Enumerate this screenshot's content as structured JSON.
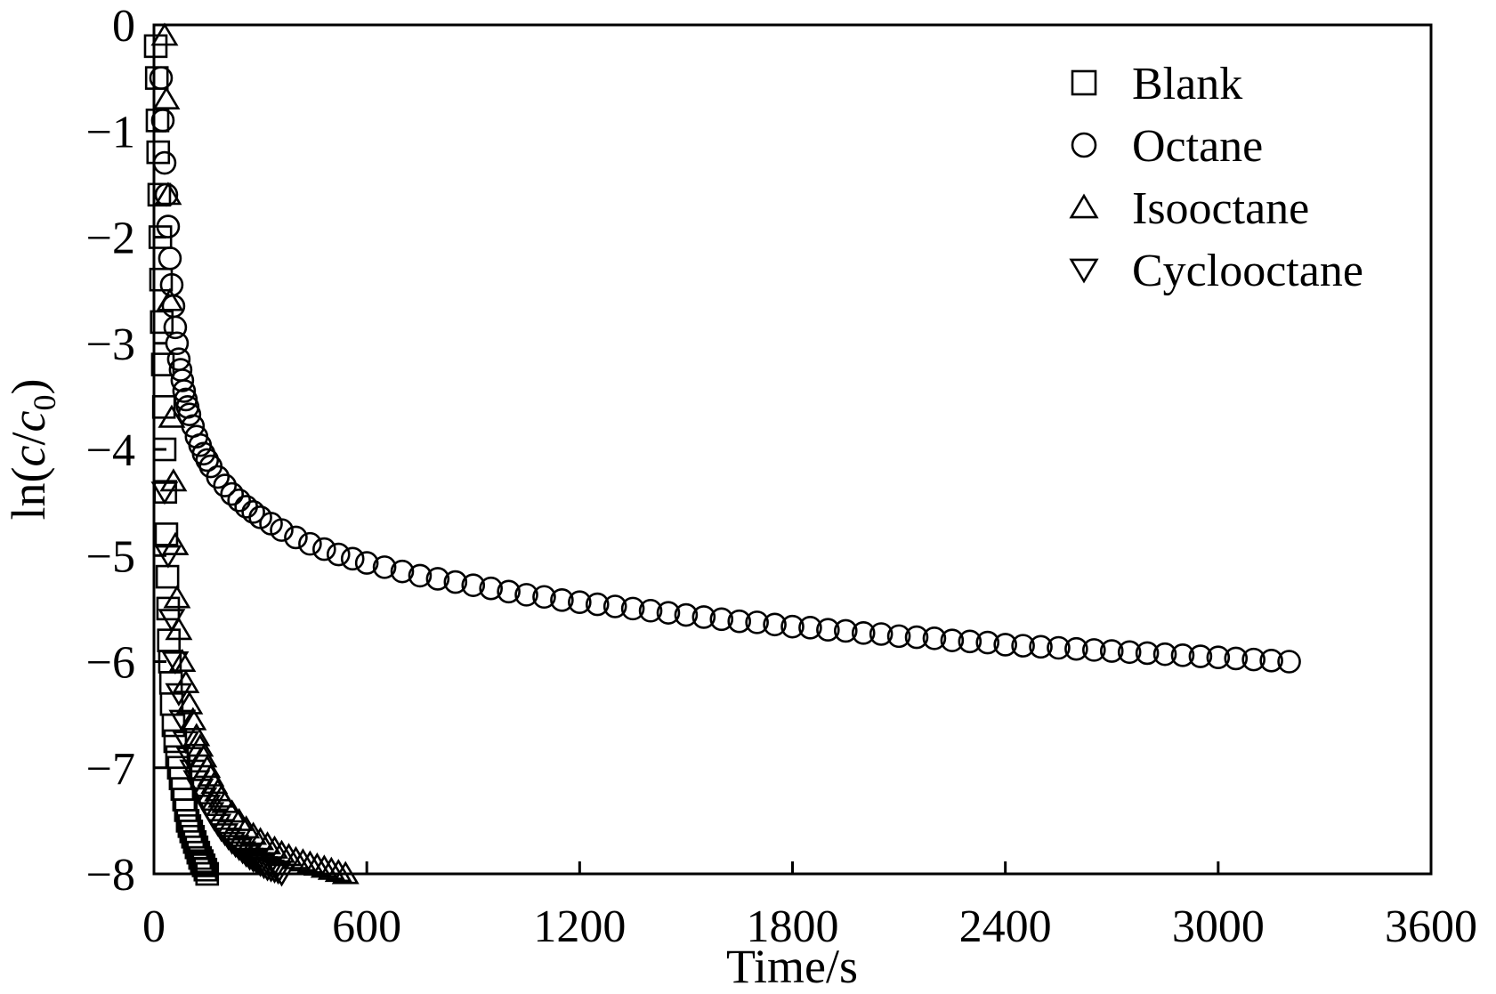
{
  "chart_data": {
    "type": "scatter",
    "xlabel": "Time/s",
    "ylabel_parts": [
      "ln(",
      "c",
      "/",
      "c",
      "0",
      ")"
    ],
    "xlim": [
      0,
      3600
    ],
    "ylim": [
      -8,
      0
    ],
    "xticks": [
      0,
      600,
      1200,
      1800,
      2400,
      3000,
      3600
    ],
    "yticks": [
      0,
      -1,
      -2,
      -3,
      -4,
      -5,
      -6,
      -7,
      -8
    ],
    "xtick_labels": [
      "0",
      "600",
      "1200",
      "1800",
      "2400",
      "3000",
      "3600"
    ],
    "ytick_labels": [
      "0",
      "−1",
      "−2",
      "−3",
      "−4",
      "−5",
      "−6",
      "−7",
      "−8"
    ],
    "grid": false,
    "legend_position": "top-right",
    "series": [
      {
        "name": "Blank",
        "marker": "square",
        "x": [
          5,
          8,
          10,
          12,
          15,
          18,
          20,
          22,
          25,
          28,
          30,
          32,
          35,
          38,
          40,
          42,
          45,
          48,
          50,
          55,
          60,
          65,
          70,
          75,
          80,
          85,
          90,
          95,
          100,
          105,
          110,
          115,
          120,
          125,
          130,
          135,
          140,
          145,
          150
        ],
        "y": [
          -0.2,
          -0.5,
          -0.9,
          -1.2,
          -1.6,
          -2.0,
          -2.4,
          -2.8,
          -3.2,
          -3.6,
          -4.0,
          -4.4,
          -4.8,
          -5.2,
          -5.5,
          -5.8,
          -6.0,
          -6.2,
          -6.4,
          -6.6,
          -6.75,
          -6.9,
          -7.0,
          -7.1,
          -7.2,
          -7.3,
          -7.4,
          -7.5,
          -7.55,
          -7.6,
          -7.65,
          -7.7,
          -7.75,
          -7.8,
          -7.85,
          -7.88,
          -7.92,
          -7.96,
          -8.0
        ]
      },
      {
        "name": "Octane",
        "marker": "circle",
        "x": [
          20,
          25,
          30,
          35,
          40,
          45,
          50,
          55,
          60,
          65,
          70,
          75,
          80,
          85,
          90,
          95,
          100,
          110,
          120,
          130,
          140,
          150,
          160,
          180,
          200,
          220,
          240,
          260,
          280,
          300,
          330,
          360,
          400,
          440,
          480,
          520,
          560,
          600,
          650,
          700,
          750,
          800,
          850,
          900,
          950,
          1000,
          1050,
          1100,
          1150,
          1200,
          1250,
          1300,
          1350,
          1400,
          1450,
          1500,
          1550,
          1600,
          1650,
          1700,
          1750,
          1800,
          1850,
          1900,
          1950,
          2000,
          2050,
          2100,
          2150,
          2200,
          2250,
          2300,
          2350,
          2400,
          2450,
          2500,
          2550,
          2600,
          2650,
          2700,
          2750,
          2800,
          2850,
          2900,
          2950,
          3000,
          3050,
          3100,
          3150,
          3200
        ],
        "y": [
          -0.5,
          -0.9,
          -1.3,
          -1.6,
          -1.9,
          -2.2,
          -2.45,
          -2.65,
          -2.85,
          -3.0,
          -3.15,
          -3.25,
          -3.35,
          -3.45,
          -3.53,
          -3.6,
          -3.67,
          -3.78,
          -3.88,
          -3.96,
          -4.04,
          -4.1,
          -4.16,
          -4.26,
          -4.34,
          -4.42,
          -4.48,
          -4.54,
          -4.59,
          -4.64,
          -4.7,
          -4.76,
          -4.83,
          -4.89,
          -4.94,
          -4.99,
          -5.03,
          -5.07,
          -5.11,
          -5.15,
          -5.19,
          -5.22,
          -5.25,
          -5.28,
          -5.31,
          -5.34,
          -5.37,
          -5.39,
          -5.42,
          -5.44,
          -5.46,
          -5.48,
          -5.5,
          -5.52,
          -5.54,
          -5.56,
          -5.58,
          -5.6,
          -5.62,
          -5.63,
          -5.65,
          -5.67,
          -5.68,
          -5.7,
          -5.71,
          -5.73,
          -5.74,
          -5.76,
          -5.77,
          -5.78,
          -5.8,
          -5.81,
          -5.82,
          -5.84,
          -5.85,
          -5.86,
          -5.87,
          -5.88,
          -5.89,
          -5.9,
          -5.91,
          -5.92,
          -5.93,
          -5.94,
          -5.95,
          -5.96,
          -5.97,
          -5.98,
          -5.99,
          -6.0
        ]
      },
      {
        "name": "Isooctane",
        "marker": "triangle-up",
        "x": [
          30,
          35,
          40,
          45,
          50,
          55,
          60,
          65,
          70,
          80,
          90,
          100,
          110,
          120,
          130,
          140,
          150,
          160,
          170,
          180,
          190,
          200,
          220,
          240,
          260,
          280,
          300,
          320,
          340,
          360,
          380,
          400,
          420,
          440,
          460,
          480,
          500,
          520,
          540
        ],
        "y": [
          -0.1,
          -0.7,
          -1.6,
          -2.6,
          -3.7,
          -4.3,
          -4.9,
          -5.4,
          -5.7,
          -6.0,
          -6.2,
          -6.4,
          -6.55,
          -6.7,
          -6.8,
          -6.9,
          -7.0,
          -7.08,
          -7.15,
          -7.22,
          -7.28,
          -7.33,
          -7.42,
          -7.5,
          -7.57,
          -7.63,
          -7.68,
          -7.72,
          -7.76,
          -7.8,
          -7.83,
          -7.86,
          -7.88,
          -7.9,
          -7.92,
          -7.94,
          -7.96,
          -7.98,
          -8.0
        ]
      },
      {
        "name": "Cyclooctane",
        "marker": "triangle-down",
        "x": [
          30,
          40,
          50,
          60,
          70,
          80,
          90,
          100,
          110,
          120,
          130,
          140,
          150,
          160,
          170,
          180,
          190,
          200,
          210,
          220,
          230,
          240,
          250,
          260,
          270,
          280,
          290,
          300,
          310,
          320,
          330,
          340,
          350,
          360
        ],
        "y": [
          -4.4,
          -5.0,
          -5.6,
          -6.0,
          -6.3,
          -6.55,
          -6.75,
          -6.9,
          -7.02,
          -7.12,
          -7.2,
          -7.28,
          -7.35,
          -7.42,
          -7.48,
          -7.53,
          -7.58,
          -7.62,
          -7.66,
          -7.7,
          -7.73,
          -7.76,
          -7.79,
          -7.82,
          -7.85,
          -7.87,
          -7.89,
          -7.91,
          -7.93,
          -7.95,
          -7.96,
          -7.97,
          -7.98,
          -8.0
        ]
      }
    ]
  }
}
